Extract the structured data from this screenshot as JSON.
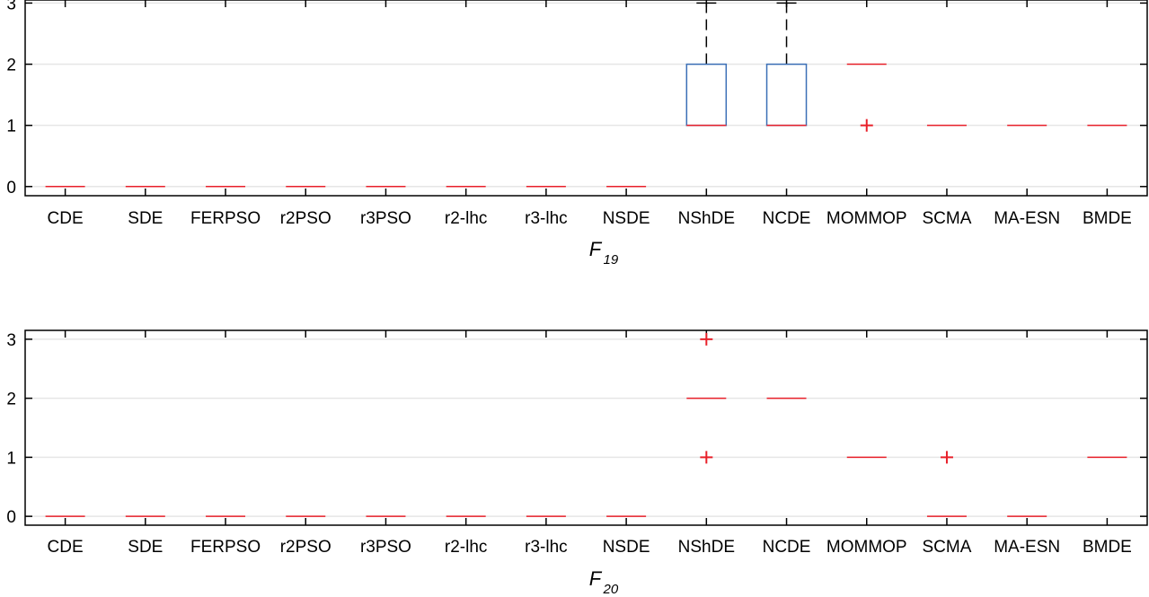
{
  "chart_data": [
    {
      "type": "box",
      "title": "F",
      "title_subscript": "19",
      "categories": [
        "CDE",
        "SDE",
        "FERPSO",
        "r2PSO",
        "r3PSO",
        "r2-lhc",
        "r3-lhc",
        "NSDE",
        "NShDE",
        "NCDE",
        "MOMMOP",
        "SCMA",
        "MA-ESN",
        "BMDE"
      ],
      "ylim": [
        -0.15,
        3.05
      ],
      "yticks": [
        0,
        1,
        2,
        3
      ],
      "grid": true,
      "boxes": [
        {
          "median": 0
        },
        {
          "median": 0
        },
        {
          "median": 0
        },
        {
          "median": 0
        },
        {
          "median": 0
        },
        {
          "median": 0
        },
        {
          "median": 0
        },
        {
          "median": 0
        },
        {
          "q1": 1,
          "median": 1,
          "q3": 2,
          "whisker_low": 1,
          "whisker_high": 3
        },
        {
          "q1": 1,
          "median": 1,
          "q3": 2,
          "whisker_low": 1,
          "whisker_high": 3
        },
        {
          "median": 2,
          "outliers": [
            1
          ]
        },
        {
          "median": 1
        },
        {
          "median": 1
        },
        {
          "median": 1
        }
      ]
    },
    {
      "type": "box",
      "title": "F",
      "title_subscript": "20",
      "categories": [
        "CDE",
        "SDE",
        "FERPSO",
        "r2PSO",
        "r3PSO",
        "r2-lhc",
        "r3-lhc",
        "NSDE",
        "NShDE",
        "NCDE",
        "MOMMOP",
        "SCMA",
        "MA-ESN",
        "BMDE"
      ],
      "ylim": [
        -0.15,
        3.15
      ],
      "yticks": [
        0,
        1,
        2,
        3
      ],
      "grid": true,
      "boxes": [
        {
          "median": 0
        },
        {
          "median": 0
        },
        {
          "median": 0
        },
        {
          "median": 0
        },
        {
          "median": 0
        },
        {
          "median": 0
        },
        {
          "median": 0
        },
        {
          "median": 0
        },
        {
          "median": 2,
          "outliers": [
            3,
            1
          ]
        },
        {
          "median": 2
        },
        {
          "median": 1
        },
        {
          "median": 0,
          "outliers": [
            1
          ]
        },
        {
          "median": 0
        },
        {
          "median": 1
        }
      ]
    }
  ],
  "colors": {
    "median": "#e8202a",
    "box": "#3b6fb6",
    "whisker": "#000000",
    "grid": "#e6e6e6",
    "axis": "#000000"
  }
}
